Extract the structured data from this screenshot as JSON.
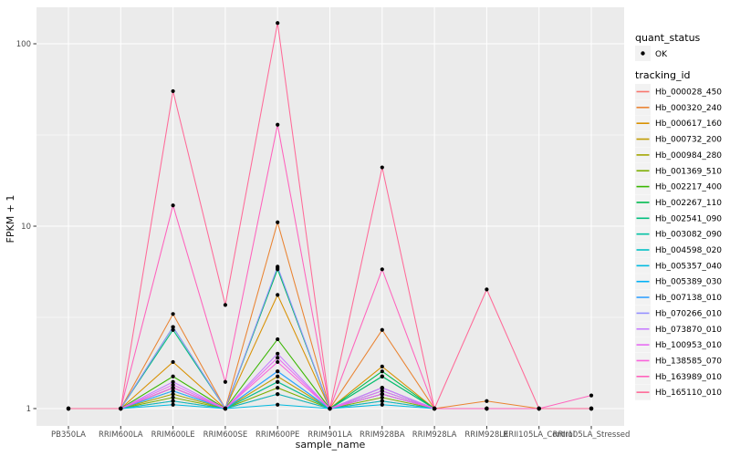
{
  "figure": {
    "background": "#FFFFFF",
    "panel_bg": "#EBEBEB",
    "grid_color": "#FFFFFF",
    "tick_color": "#333333",
    "tick_label_color": "#4D4D4D",
    "point_color": "#000000",
    "legend_key_bg": "#F2F2F2"
  },
  "chart_data": {
    "type": "line",
    "title": "",
    "xlabel": "sample_name",
    "ylabel": "FPKM + 1",
    "y_scale": "log10",
    "ylim": [
      1,
      130
    ],
    "grid": "on",
    "legend_position": "right",
    "y_ticks": [
      {
        "label": "1",
        "value": 1
      },
      {
        "label": "10",
        "value": 10
      },
      {
        "label": "100",
        "value": 100
      }
    ],
    "y_minor_gridlines": [
      3.1623,
      31.623
    ],
    "categories": [
      "PB350LA",
      "RRIM600LA",
      "RRIM600LE",
      "RRIM600SE",
      "RRIM600PE",
      "RRIM901LA",
      "RRIM928BA",
      "RRIM928LA",
      "RRIM928LE",
      "RRII105LA_Control",
      "RRII105LA_Stressed"
    ],
    "series": [
      {
        "name": "Hb_000028_450",
        "color": "#F8766D",
        "values": [
          1,
          1,
          1.1,
          1,
          1.2,
          1,
          1.1,
          1,
          1,
          1,
          1
        ]
      },
      {
        "name": "Hb_000320_240",
        "color": "#EA8331",
        "values": [
          1,
          1,
          3.3,
          1,
          10.5,
          1,
          2.7,
          1,
          1.1,
          1,
          1
        ]
      },
      {
        "name": "Hb_000617_160",
        "color": "#D89000",
        "values": [
          1,
          1,
          1.8,
          1,
          4.2,
          1,
          1.7,
          1,
          1,
          1,
          1
        ]
      },
      {
        "name": "Hb_000732_200",
        "color": "#C09B00",
        "values": [
          1,
          1,
          1.3,
          1,
          1.5,
          1,
          1.3,
          1,
          1,
          1,
          1
        ]
      },
      {
        "name": "Hb_000984_280",
        "color": "#A3A500",
        "values": [
          1,
          1,
          1.2,
          1,
          1.4,
          1,
          1.2,
          1,
          1,
          1,
          1
        ]
      },
      {
        "name": "Hb_001369_510",
        "color": "#7CAE00",
        "values": [
          1,
          1,
          1.15,
          1,
          1.3,
          1,
          1.15,
          1,
          1,
          1,
          1
        ]
      },
      {
        "name": "Hb_002217_400",
        "color": "#39B600",
        "values": [
          1,
          1,
          1.5,
          1,
          2.4,
          1,
          1.5,
          1,
          1,
          1,
          1
        ]
      },
      {
        "name": "Hb_002267_110",
        "color": "#00BB4E",
        "values": [
          1,
          1,
          2.8,
          1,
          5.8,
          1,
          1.6,
          1,
          1,
          1,
          1
        ]
      },
      {
        "name": "Hb_002541_090",
        "color": "#00BF7D",
        "values": [
          1,
          1,
          2.7,
          1,
          5.9,
          1,
          1.5,
          1,
          1,
          1,
          1
        ]
      },
      {
        "name": "Hb_003082_090",
        "color": "#00C1A3",
        "values": [
          1,
          1,
          1.25,
          1,
          1.4,
          1,
          1.25,
          1,
          1,
          1,
          1
        ]
      },
      {
        "name": "Hb_004598_020",
        "color": "#00BFC4",
        "values": [
          1,
          1,
          1.1,
          1,
          1.2,
          1,
          1.1,
          1,
          1,
          1,
          1
        ]
      },
      {
        "name": "Hb_005357_040",
        "color": "#00BAE0",
        "values": [
          1,
          1,
          1.05,
          1,
          1.05,
          1,
          1.05,
          1,
          1,
          1,
          1
        ]
      },
      {
        "name": "Hb_005389_030",
        "color": "#00B0F6",
        "values": [
          1,
          1,
          1.3,
          1,
          1.6,
          1,
          1.2,
          1,
          1,
          1,
          1
        ]
      },
      {
        "name": "Hb_007138_010",
        "color": "#35A2FF",
        "values": [
          1,
          1,
          1.25,
          1,
          1.6,
          1,
          1.2,
          1,
          1,
          1,
          1
        ]
      },
      {
        "name": "Hb_070266_010",
        "color": "#9590FF",
        "values": [
          1,
          1,
          2.8,
          1,
          6.0,
          1,
          1.3,
          1,
          1,
          1,
          1
        ]
      },
      {
        "name": "Hb_073870_010",
        "color": "#C77CFF",
        "values": [
          1,
          1,
          1.4,
          1,
          2.0,
          1,
          1.3,
          1,
          1,
          1,
          1
        ]
      },
      {
        "name": "Hb_100953_010",
        "color": "#E76BF3",
        "values": [
          1,
          1,
          1.35,
          1,
          1.9,
          1,
          1.25,
          1,
          1,
          1,
          1
        ]
      },
      {
        "name": "Hb_138585_070",
        "color": "#FA62DB",
        "values": [
          1,
          1,
          1.3,
          1,
          1.8,
          1,
          1.2,
          1,
          1,
          1,
          1
        ]
      },
      {
        "name": "Hb_163989_010",
        "color": "#FF62BC",
        "values": [
          1,
          1,
          13.0,
          1.4,
          36.0,
          1,
          5.8,
          1,
          1,
          1,
          1.18
        ]
      },
      {
        "name": "Hb_165110_010",
        "color": "#FF6A98",
        "values": [
          1,
          1,
          55.0,
          3.7,
          130.0,
          1,
          21.0,
          1,
          4.5,
          1,
          1
        ]
      }
    ]
  },
  "legend": {
    "quant_status": {
      "title": "quant_status",
      "items": [
        {
          "label": "OK",
          "marker": "black-point"
        }
      ]
    },
    "tracking_id": {
      "title": "tracking_id"
    }
  }
}
